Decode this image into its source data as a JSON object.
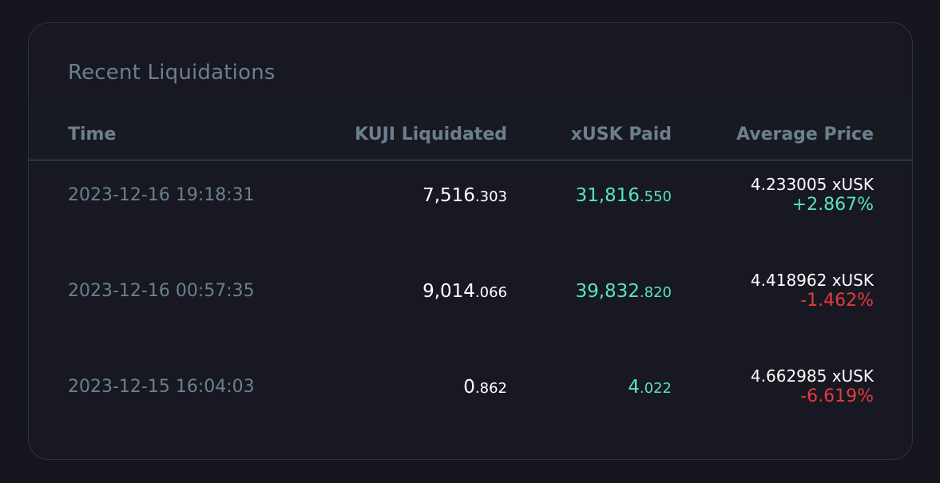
{
  "panel": {
    "title": "Recent Liquidations"
  },
  "columns": {
    "time": "Time",
    "kuji": "KUJI Liquidated",
    "xusk": "xUSK Paid",
    "avg": "Average Price"
  },
  "rows": [
    {
      "time": "2023-12-16 19:18:31",
      "kuji_int": "7,516",
      "kuji_dec": ".303",
      "xusk_int": "31,816",
      "xusk_dec": ".550",
      "avg_price": "4.233005 xUSK",
      "avg_change": "+2.867%",
      "change_direction": "positive"
    },
    {
      "time": "2023-12-16 00:57:35",
      "kuji_int": "9,014",
      "kuji_dec": ".066",
      "xusk_int": "39,832",
      "xusk_dec": ".820",
      "avg_price": "4.418962 xUSK",
      "avg_change": "-1.462%",
      "change_direction": "negative"
    },
    {
      "time": "2023-12-15 16:04:03",
      "kuji_int": "0",
      "kuji_dec": ".862",
      "xusk_int": "4",
      "xusk_dec": ".022",
      "avg_price": "4.662985 xUSK",
      "avg_change": "-6.619%",
      "change_direction": "negative"
    }
  ],
  "colors": {
    "background": "#14151d",
    "card": "#171821",
    "muted_text": "#6b808c",
    "positive": "#58e3c2",
    "negative": "#e63b3e",
    "value_text": "#ffffff"
  }
}
